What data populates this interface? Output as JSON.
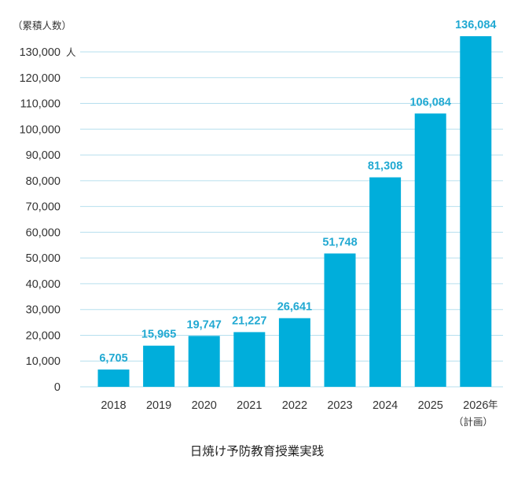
{
  "colors": {
    "bar": "#00aedb",
    "label": "#21a9d2",
    "grid": "#b6dfee",
    "text": "#333333"
  },
  "chart_data": {
    "type": "bar",
    "title": "日焼け予防教育授業実践",
    "ylabel": "（累積人数）",
    "y_unit": "人",
    "x_unit": "年",
    "x_note": "（計画）",
    "ylim": [
      0,
      130000
    ],
    "grid": true,
    "y_ticks": [
      "0",
      "10,000",
      "20,000",
      "30,000",
      "40,000",
      "50,000",
      "60,000",
      "70,000",
      "80,000",
      "90,000",
      "100,000",
      "110,000",
      "120,000",
      "130,000"
    ],
    "categories": [
      "2018",
      "2019",
      "2020",
      "2021",
      "2022",
      "2023",
      "2024",
      "2025",
      "2026"
    ],
    "values": [
      6705,
      15965,
      19747,
      21227,
      26641,
      51748,
      81308,
      106084,
      136084
    ],
    "value_labels": [
      "6,705",
      "15,965",
      "19,747",
      "21,227",
      "26,641",
      "51,748",
      "81,308",
      "106,084",
      "136,084"
    ]
  }
}
